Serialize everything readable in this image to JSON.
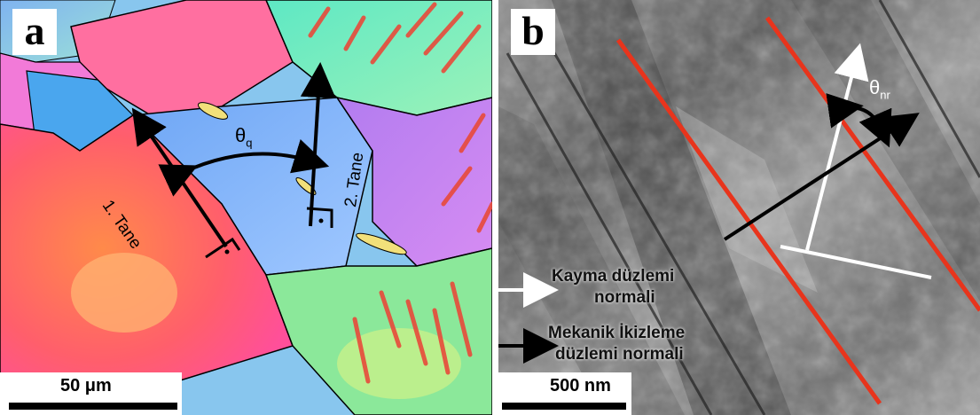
{
  "panel_a": {
    "letter": "a",
    "scale_label": "50 μm",
    "grain1_label": "1. Tane",
    "grain2_label": "2. Tane",
    "angle_symbol": "θ",
    "angle_subscript": "q",
    "right_angle_marker": "perpendicular-symbol"
  },
  "panel_b": {
    "letter": "b",
    "scale_label": "500 nm",
    "angle_symbol": "θ",
    "angle_subscript": "nr",
    "legend": {
      "slip_line1": "Kayma düzlemi",
      "slip_line2": "normali",
      "twin_line1": "Mekanik İkizleme",
      "twin_line2": "düzlemi normali"
    }
  },
  "colors": {
    "twin_boundary": "#e8341c",
    "slip_arrow": "#ffffff",
    "twin_arrow": "#000000"
  }
}
